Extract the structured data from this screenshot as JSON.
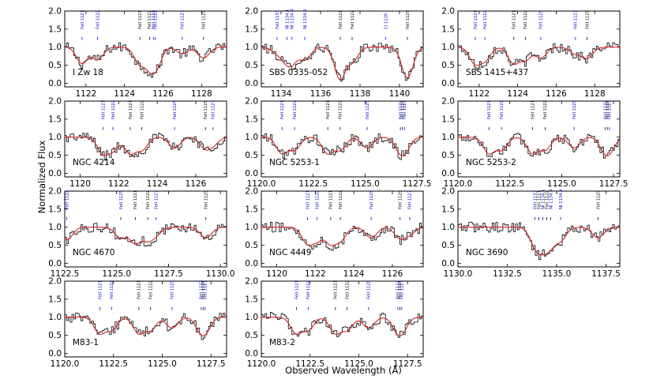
{
  "chart_data": {
    "type": "line",
    "xlabel": "Observed Wavelength (Å)",
    "ylabel": "Normalized Flux",
    "yticks": [
      "0.0",
      "0.5",
      "1.0",
      "1.5",
      "2.0"
    ],
    "ylim": [
      -0.1,
      2.0
    ],
    "series_names": [
      "observed spectrum (histogram)",
      "model fit"
    ],
    "colors": {
      "data": "#000000",
      "fit": "#d62728",
      "galactic_label": "#0000cc",
      "target_label": "#000000"
    },
    "panels": [
      {
        "name": "I Zw 18",
        "xlim": [
          1120.9,
          1129.3
        ],
        "xticks": [
          "1122",
          "1124",
          "1126",
          "1128"
        ],
        "lines": [
          {
            "label": "FeII 1121",
            "x": 1121.8,
            "color": "blue"
          },
          {
            "label": "FeII 1122",
            "x": 1122.6,
            "color": "blue"
          },
          {
            "label": "FeII 1121",
            "x": 1124.8,
            "color": "black"
          },
          {
            "label": "FeII 1122",
            "x": 1125.3,
            "color": "black"
          },
          {
            "label": "FeII 1121",
            "x": 1125.5,
            "color": "blue"
          },
          {
            "label": "FeII 1122",
            "x": 1125.6,
            "color": "blue"
          },
          {
            "label": "FeII 1127",
            "x": 1127.0,
            "color": "blue"
          },
          {
            "label": "FeII 1125",
            "x": 1128.1,
            "color": "black"
          }
        ]
      },
      {
        "name": "SBS 0335-052",
        "xlim": [
          1133.0,
          1141.2
        ],
        "xticks": [
          "1134",
          "1136",
          "1138",
          "1140"
        ],
        "lines": [
          {
            "label": "FeII 1133",
            "x": 1133.8,
            "color": "blue"
          },
          {
            "label": "NI 1134.1",
            "x": 1134.3,
            "color": "blue"
          },
          {
            "label": "NI 1134.4",
            "x": 1134.55,
            "color": "blue"
          },
          {
            "label": "NI 1134.9",
            "x": 1135.2,
            "color": "blue"
          },
          {
            "label": "FeII 1121",
            "x": 1137.0,
            "color": "black"
          },
          {
            "label": "FeII 1122",
            "x": 1137.6,
            "color": "black"
          },
          {
            "label": "CI 1139",
            "x": 1139.3,
            "color": "blue"
          },
          {
            "label": "FeII 1125",
            "x": 1140.4,
            "color": "black"
          }
        ]
      },
      {
        "name": "SBS 1415+437",
        "xlim": [
          1120.9,
          1129.3
        ],
        "xticks": [
          "1122",
          "1124",
          "1126",
          "1128"
        ],
        "lines": [
          {
            "label": "FeII 1121",
            "x": 1121.8,
            "color": "blue"
          },
          {
            "label": "FeII 1122",
            "x": 1122.3,
            "color": "blue"
          },
          {
            "label": "FeII 1121",
            "x": 1123.8,
            "color": "black"
          },
          {
            "label": "FeII 1122",
            "x": 1124.4,
            "color": "black"
          },
          {
            "label": "FeII 1125",
            "x": 1125.2,
            "color": "blue"
          },
          {
            "label": "FeII 1127",
            "x": 1127.0,
            "color": "blue"
          },
          {
            "label": "FeII 1125",
            "x": 1127.6,
            "color": "black"
          }
        ]
      },
      {
        "name": "NGC 4214",
        "xlim": [
          1119.2,
          1127.6
        ],
        "xticks": [
          "1120",
          "1122",
          "1124",
          "1126"
        ],
        "lines": [
          {
            "label": "FeII 1121",
            "x": 1121.2,
            "color": "blue"
          },
          {
            "label": "FeII 1122",
            "x": 1121.7,
            "color": "blue"
          },
          {
            "label": "FeII 1121",
            "x": 1122.6,
            "color": "black"
          },
          {
            "label": "FeII 1122",
            "x": 1123.2,
            "color": "black"
          },
          {
            "label": "FeII 1125",
            "x": 1124.9,
            "color": "blue"
          },
          {
            "label": "FeII 1125",
            "x": 1126.5,
            "color": "black"
          },
          {
            "label": "FeII 1127",
            "x": 1126.9,
            "color": "blue"
          }
        ]
      },
      {
        "name": "NGC 5253-1",
        "xlim": [
          1120.0,
          1127.8
        ],
        "xticks": [
          "1120.0",
          "1122.5",
          "1125.0",
          "1127.5"
        ],
        "lines": [
          {
            "label": "FeII 1121",
            "x": 1121.0,
            "color": "blue"
          },
          {
            "label": "FeII 1122",
            "x": 1121.6,
            "color": "blue"
          },
          {
            "label": "FeII 1121",
            "x": 1123.2,
            "color": "black"
          },
          {
            "label": "FeII 1122",
            "x": 1123.8,
            "color": "black"
          },
          {
            "label": "FeII 1125",
            "x": 1125.1,
            "color": "blue"
          },
          {
            "label": "FeII 1127",
            "x": 1126.7,
            "color": "blue"
          },
          {
            "label": "FeII 1125",
            "x": 1126.8,
            "color": "black"
          },
          {
            "label": "FeII 1127",
            "x": 1126.9,
            "color": "blue"
          }
        ]
      },
      {
        "name": "NGC 5253-2",
        "xlim": [
          1120.0,
          1127.8
        ],
        "xticks": [
          "1120.0",
          "1122.5",
          "1125.0",
          "1127.5"
        ],
        "lines": [
          {
            "label": "FeII 1121",
            "x": 1121.5,
            "color": "blue"
          },
          {
            "label": "FeII 1122",
            "x": 1122.1,
            "color": "blue"
          },
          {
            "label": "FeII 1121",
            "x": 1123.6,
            "color": "black"
          },
          {
            "label": "FeII 1122",
            "x": 1124.2,
            "color": "black"
          },
          {
            "label": "FeII 1125",
            "x": 1125.6,
            "color": "blue"
          },
          {
            "label": "FeII 1127",
            "x": 1127.1,
            "color": "blue"
          },
          {
            "label": "FeII 1125",
            "x": 1127.2,
            "color": "black"
          },
          {
            "label": "FeII 1127",
            "x": 1127.3,
            "color": "blue"
          }
        ]
      },
      {
        "name": "NGC 4670",
        "xlim": [
          1122.5,
          1130.3
        ],
        "xticks": [
          "1122.5",
          "1125.0",
          "1127.5",
          "1130.0"
        ],
        "lines": [
          {
            "label": "FeII 1122",
            "x": 1122.6,
            "color": "blue"
          },
          {
            "label": "FeII 1125",
            "x": 1125.2,
            "color": "blue"
          },
          {
            "label": "FeII 1121",
            "x": 1125.9,
            "color": "black"
          },
          {
            "label": "FeII 1122",
            "x": 1126.5,
            "color": "black"
          },
          {
            "label": "FeII 1127",
            "x": 1126.9,
            "color": "blue"
          },
          {
            "label": "FeII 1125",
            "x": 1129.3,
            "color": "black"
          }
        ]
      },
      {
        "name": "NGC 4449",
        "xlim": [
          1119.2,
          1127.6
        ],
        "xticks": [
          "1120",
          "1122",
          "1124",
          "1126"
        ],
        "lines": [
          {
            "label": "FeII 1121",
            "x": 1121.6,
            "color": "blue"
          },
          {
            "label": "FeII 1122",
            "x": 1122.1,
            "color": "blue"
          },
          {
            "label": "FeII 1121",
            "x": 1122.8,
            "color": "black"
          },
          {
            "label": "FeII 1122",
            "x": 1123.3,
            "color": "black"
          },
          {
            "label": "FeII 1125",
            "x": 1124.9,
            "color": "blue"
          },
          {
            "label": "FeII 1125",
            "x": 1126.4,
            "color": "black"
          },
          {
            "label": "FeII 1127",
            "x": 1126.9,
            "color": "blue"
          }
        ]
      },
      {
        "name": "NGC 3690",
        "xlim": [
          1130.0,
          1138.2
        ],
        "xticks": [
          "1130.0",
          "1132.5",
          "1135.0",
          "1137.5"
        ],
        "lines": [
          {
            "label": "FeII 1133",
            "x": 1133.9,
            "color": "blue"
          },
          {
            "label": "FeII 1121",
            "x": 1134.1,
            "color": "black"
          },
          {
            "label": "NI 1134.1",
            "x": 1134.3,
            "color": "blue"
          },
          {
            "label": "FeII 1122",
            "x": 1134.5,
            "color": "black"
          },
          {
            "label": "NI 1134.4",
            "x": 1134.7,
            "color": "blue"
          },
          {
            "label": "NI 1134.9",
            "x": 1135.2,
            "color": "blue"
          },
          {
            "label": "FeII 1125",
            "x": 1137.1,
            "color": "black"
          }
        ]
      },
      {
        "name": "M83-1",
        "xlim": [
          1120.0,
          1128.3
        ],
        "xticks": [
          "1120.0",
          "1122.5",
          "1125.0",
          "1127.5"
        ],
        "lines": [
          {
            "label": "FeII 1121",
            "x": 1121.8,
            "color": "blue"
          },
          {
            "label": "FeII 1122",
            "x": 1122.4,
            "color": "blue"
          },
          {
            "label": "FeII 1121",
            "x": 1123.8,
            "color": "black"
          },
          {
            "label": "FeII 1122",
            "x": 1124.4,
            "color": "black"
          },
          {
            "label": "FeII 1125",
            "x": 1125.5,
            "color": "blue"
          },
          {
            "label": "FeII 1127",
            "x": 1127.0,
            "color": "blue"
          },
          {
            "label": "FeII 1125",
            "x": 1127.1,
            "color": "black"
          },
          {
            "label": "FeII 1127",
            "x": 1127.2,
            "color": "blue"
          }
        ]
      },
      {
        "name": "M83-2",
        "xlim": [
          1120.0,
          1128.3
        ],
        "xticks": [
          "1120.0",
          "1122.5",
          "1125.0",
          "1127.5"
        ],
        "lines": [
          {
            "label": "FeII 1121",
            "x": 1121.8,
            "color": "blue"
          },
          {
            "label": "FeII 1122",
            "x": 1122.4,
            "color": "blue"
          },
          {
            "label": "FeII 1121",
            "x": 1123.8,
            "color": "black"
          },
          {
            "label": "FeII 1122",
            "x": 1124.4,
            "color": "black"
          },
          {
            "label": "FeII 1125",
            "x": 1125.5,
            "color": "blue"
          },
          {
            "label": "FeII 1127",
            "x": 1127.0,
            "color": "blue"
          },
          {
            "label": "FeII 1125",
            "x": 1127.1,
            "color": "black"
          },
          {
            "label": "FeII 1127",
            "x": 1127.2,
            "color": "blue"
          }
        ]
      }
    ]
  }
}
